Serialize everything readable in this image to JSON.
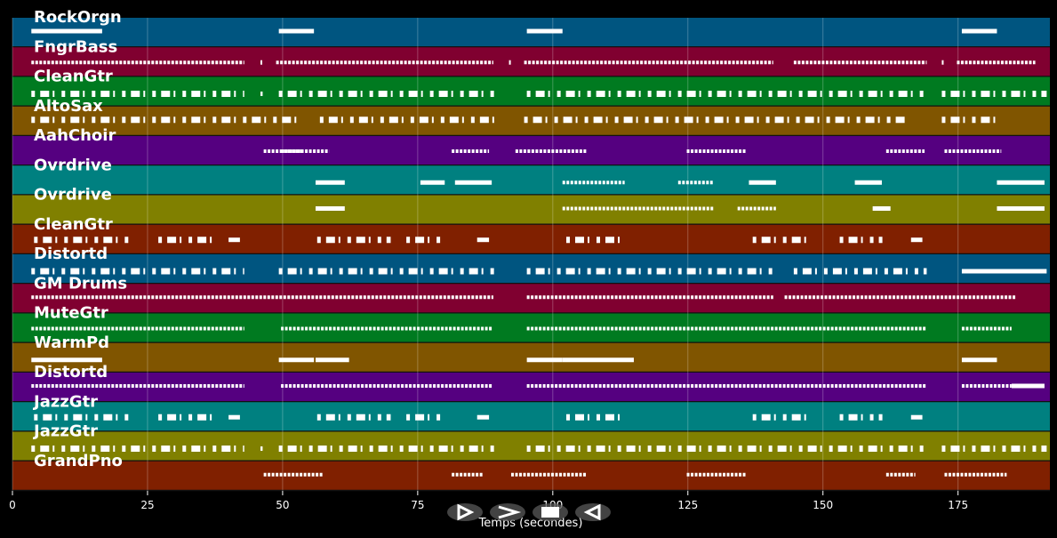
{
  "chart_data": {
    "type": "piano-roll",
    "xlabel": "Temps (secondes)",
    "xlim": [
      0,
      192
    ],
    "xticks": [
      0,
      25,
      50,
      75,
      100,
      125,
      150,
      175
    ],
    "grid": true,
    "tracks": [
      {
        "name": "RockOrgn",
        "color": "#005580",
        "segments": [
          [
            3.5,
            16.6,
            "solid"
          ],
          [
            49.3,
            55.8,
            "solid"
          ],
          [
            95.2,
            101.8,
            "solid"
          ],
          [
            175.7,
            182.2,
            "solid"
          ]
        ]
      },
      {
        "name": "FngrBass",
        "color": "#800030",
        "segments": [
          [
            3.5,
            42.9,
            "dotted"
          ],
          [
            45.9,
            46.2,
            "solid"
          ],
          [
            48.8,
            89,
            "dotted"
          ],
          [
            91.9,
            92.2,
            "solid"
          ],
          [
            94.7,
            140.8,
            "dotted"
          ],
          [
            144.6,
            169.2,
            "dotted"
          ],
          [
            172,
            172.3,
            "solid"
          ],
          [
            174.8,
            189.3,
            "dotted"
          ]
        ]
      },
      {
        "name": "CleanGtr",
        "color": "#007a20",
        "segments": [
          [
            3.5,
            42.9,
            "sparse"
          ],
          [
            45.9,
            46.3,
            "solid"
          ],
          [
            49.3,
            89.8,
            "sparse"
          ],
          [
            95.2,
            169.2,
            "sparse"
          ],
          [
            172,
            191.4,
            "sparse"
          ]
        ]
      },
      {
        "name": "AltoSax",
        "color": "#805500",
        "segments": [
          [
            3.5,
            53.6,
            "sparse"
          ],
          [
            56.9,
            89.8,
            "sparse"
          ],
          [
            94.7,
            165.5,
            "sparse"
          ],
          [
            172,
            182.7,
            "sparse"
          ]
        ]
      },
      {
        "name": "AahChoir",
        "color": "#550080",
        "segments": [
          [
            46.5,
            53.6,
            "dotted"
          ],
          [
            49.7,
            58.6,
            "dotted"
          ],
          [
            81.3,
            88.2,
            "dotted"
          ],
          [
            93.1,
            106.3,
            "dotted"
          ],
          [
            124.8,
            135.9,
            "dotted"
          ],
          [
            161.7,
            168.8,
            "dotted"
          ],
          [
            172.5,
            183,
            "dotted"
          ]
        ]
      },
      {
        "name": "Ovrdrive",
        "color": "#008080",
        "segments": [
          [
            56.1,
            61.5,
            "solid"
          ],
          [
            75.5,
            80,
            "solid"
          ],
          [
            81.9,
            88.7,
            "solid"
          ],
          [
            101.8,
            113.3,
            "dotted"
          ],
          [
            123.2,
            129.6,
            "dotted"
          ],
          [
            136.3,
            141.3,
            "solid"
          ],
          [
            155.9,
            160.9,
            "solid"
          ],
          [
            182.2,
            191,
            "solid"
          ]
        ]
      },
      {
        "name": "Ovrdrive",
        "color": "#808000",
        "segments": [
          [
            56.1,
            61.5,
            "solid"
          ],
          [
            101.8,
            129.8,
            "dotted"
          ],
          [
            134.2,
            141.3,
            "dotted"
          ],
          [
            159.2,
            162.5,
            "solid"
          ],
          [
            182.2,
            191,
            "solid"
          ]
        ]
      },
      {
        "name": "CleanGtr",
        "color": "#802000",
        "segments": [
          [
            4,
            21.5,
            "sparse"
          ],
          [
            27,
            37.2,
            "sparse"
          ],
          [
            40,
            42.1,
            "solid"
          ],
          [
            56.4,
            70,
            "sparse"
          ],
          [
            72.9,
            80,
            "sparse"
          ],
          [
            86,
            88.2,
            "solid"
          ],
          [
            102.5,
            113.3,
            "sparse"
          ],
          [
            137,
            147.9,
            "sparse"
          ],
          [
            153.1,
            161,
            "sparse"
          ],
          [
            166.3,
            168.4,
            "solid"
          ]
        ]
      },
      {
        "name": "Distortd",
        "color": "#005580",
        "segments": [
          [
            3.5,
            42.9,
            "sparse"
          ],
          [
            49.3,
            89.8,
            "sparse"
          ],
          [
            95.2,
            140.8,
            "sparse"
          ],
          [
            144.6,
            169.2,
            "sparse"
          ],
          [
            175.7,
            191.4,
            "solid"
          ]
        ]
      },
      {
        "name": "GM Drums",
        "color": "#800030",
        "segments": [
          [
            3.5,
            89,
            "dotted"
          ],
          [
            95.2,
            140.8,
            "dotted"
          ],
          [
            142.9,
            185.7,
            "dotted"
          ]
        ]
      },
      {
        "name": "MuteGtr",
        "color": "#007a20",
        "segments": [
          [
            3.5,
            42.9,
            "dotted"
          ],
          [
            49.7,
            88.7,
            "dotted"
          ],
          [
            95.2,
            169.2,
            "dotted"
          ],
          [
            175.7,
            184.9,
            "dotted"
          ]
        ]
      },
      {
        "name": "WarmPd",
        "color": "#805500",
        "segments": [
          [
            3.5,
            16.6,
            "solid"
          ],
          [
            49.3,
            55.8,
            "solid"
          ],
          [
            56.1,
            62.3,
            "solid"
          ],
          [
            95.2,
            101.8,
            "solid"
          ],
          [
            101.8,
            115,
            "solid"
          ],
          [
            175.7,
            182.2,
            "solid"
          ]
        ]
      },
      {
        "name": "Distortd",
        "color": "#550080",
        "segments": [
          [
            3.5,
            42.9,
            "dotted"
          ],
          [
            49.7,
            88.7,
            "dotted"
          ],
          [
            95.2,
            169.2,
            "dotted"
          ],
          [
            175.7,
            184.9,
            "dotted"
          ],
          [
            184.9,
            191,
            "solid"
          ]
        ]
      },
      {
        "name": "JazzGtr",
        "color": "#008080",
        "segments": [
          [
            4,
            21.5,
            "sparse"
          ],
          [
            27,
            37.2,
            "sparse"
          ],
          [
            40,
            42.1,
            "solid"
          ],
          [
            56.4,
            70,
            "sparse"
          ],
          [
            72.9,
            80,
            "sparse"
          ],
          [
            86,
            88.2,
            "solid"
          ],
          [
            102.5,
            113.3,
            "sparse"
          ],
          [
            137,
            147.9,
            "sparse"
          ],
          [
            153.1,
            161,
            "sparse"
          ],
          [
            166.3,
            168.4,
            "solid"
          ]
        ]
      },
      {
        "name": "JazzGtr",
        "color": "#808000",
        "segments": [
          [
            3.5,
            42.9,
            "sparse"
          ],
          [
            45.9,
            46.3,
            "solid"
          ],
          [
            49.3,
            89.8,
            "sparse"
          ],
          [
            95.2,
            169.2,
            "sparse"
          ],
          [
            172,
            191.4,
            "sparse"
          ]
        ]
      },
      {
        "name": "GrandPno",
        "color": "#802000",
        "segments": [
          [
            46.5,
            57.4,
            "dotted"
          ],
          [
            81.3,
            87,
            "dotted"
          ],
          [
            92.3,
            106.3,
            "dotted"
          ],
          [
            124.8,
            135.9,
            "dotted"
          ],
          [
            161.7,
            167.1,
            "dotted"
          ],
          [
            172.5,
            184,
            "dotted"
          ]
        ]
      }
    ]
  },
  "nav": {
    "buttons": [
      {
        "name": "rewind",
        "icon": "play-start-icon"
      },
      {
        "name": "play",
        "icon": "play-icon"
      },
      {
        "name": "stop",
        "icon": "stop-icon"
      },
      {
        "name": "back",
        "icon": "reverse-icon"
      }
    ]
  }
}
